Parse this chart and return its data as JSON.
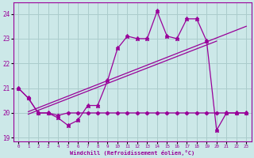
{
  "xlabel": "Windchill (Refroidissement éolien,°C)",
  "bg_color": "#cce8e8",
  "grid_color": "#aacccc",
  "line_color": "#990099",
  "x_data": [
    0,
    1,
    2,
    3,
    4,
    5,
    6,
    7,
    8,
    9,
    10,
    11,
    12,
    13,
    14,
    15,
    16,
    17,
    18,
    19,
    20,
    21,
    22,
    23
  ],
  "y_main": [
    21.0,
    20.6,
    20.0,
    20.0,
    19.8,
    19.5,
    19.7,
    20.3,
    20.3,
    21.3,
    22.6,
    23.1,
    23.0,
    23.0,
    24.1,
    23.1,
    23.0,
    23.8,
    23.8,
    22.9,
    19.3,
    20.0,
    20.0,
    20.0
  ],
  "y_flat": [
    21.0,
    20.6,
    20.0,
    20.0,
    19.9,
    20.0,
    20.0,
    20.0,
    20.0,
    20.0,
    20.0,
    20.0,
    20.0,
    20.0,
    20.0,
    20.0,
    20.0,
    20.0,
    20.0,
    20.0,
    20.0,
    20.0,
    20.0,
    20.0
  ],
  "trend1_x": [
    1,
    23
  ],
  "trend1_y": [
    20.05,
    23.5
  ],
  "trend2_x": [
    1,
    20
  ],
  "trend2_y": [
    19.95,
    22.9
  ],
  "ylim": [
    18.85,
    24.45
  ],
  "xlim": [
    -0.5,
    23.5
  ],
  "yticks": [
    19,
    20,
    21,
    22,
    23,
    24
  ],
  "xticks": [
    0,
    1,
    2,
    3,
    4,
    5,
    6,
    7,
    8,
    9,
    10,
    11,
    12,
    13,
    14,
    15,
    16,
    17,
    18,
    19,
    20,
    21,
    22,
    23
  ],
  "xtick_labels": [
    "0",
    "1",
    "2",
    "3",
    "4",
    "5",
    "6",
    "7",
    "8",
    "9",
    "10",
    "11",
    "12",
    "13",
    "14",
    "15",
    "16",
    "17",
    "18",
    "19",
    "20",
    "21",
    "22",
    "23"
  ]
}
